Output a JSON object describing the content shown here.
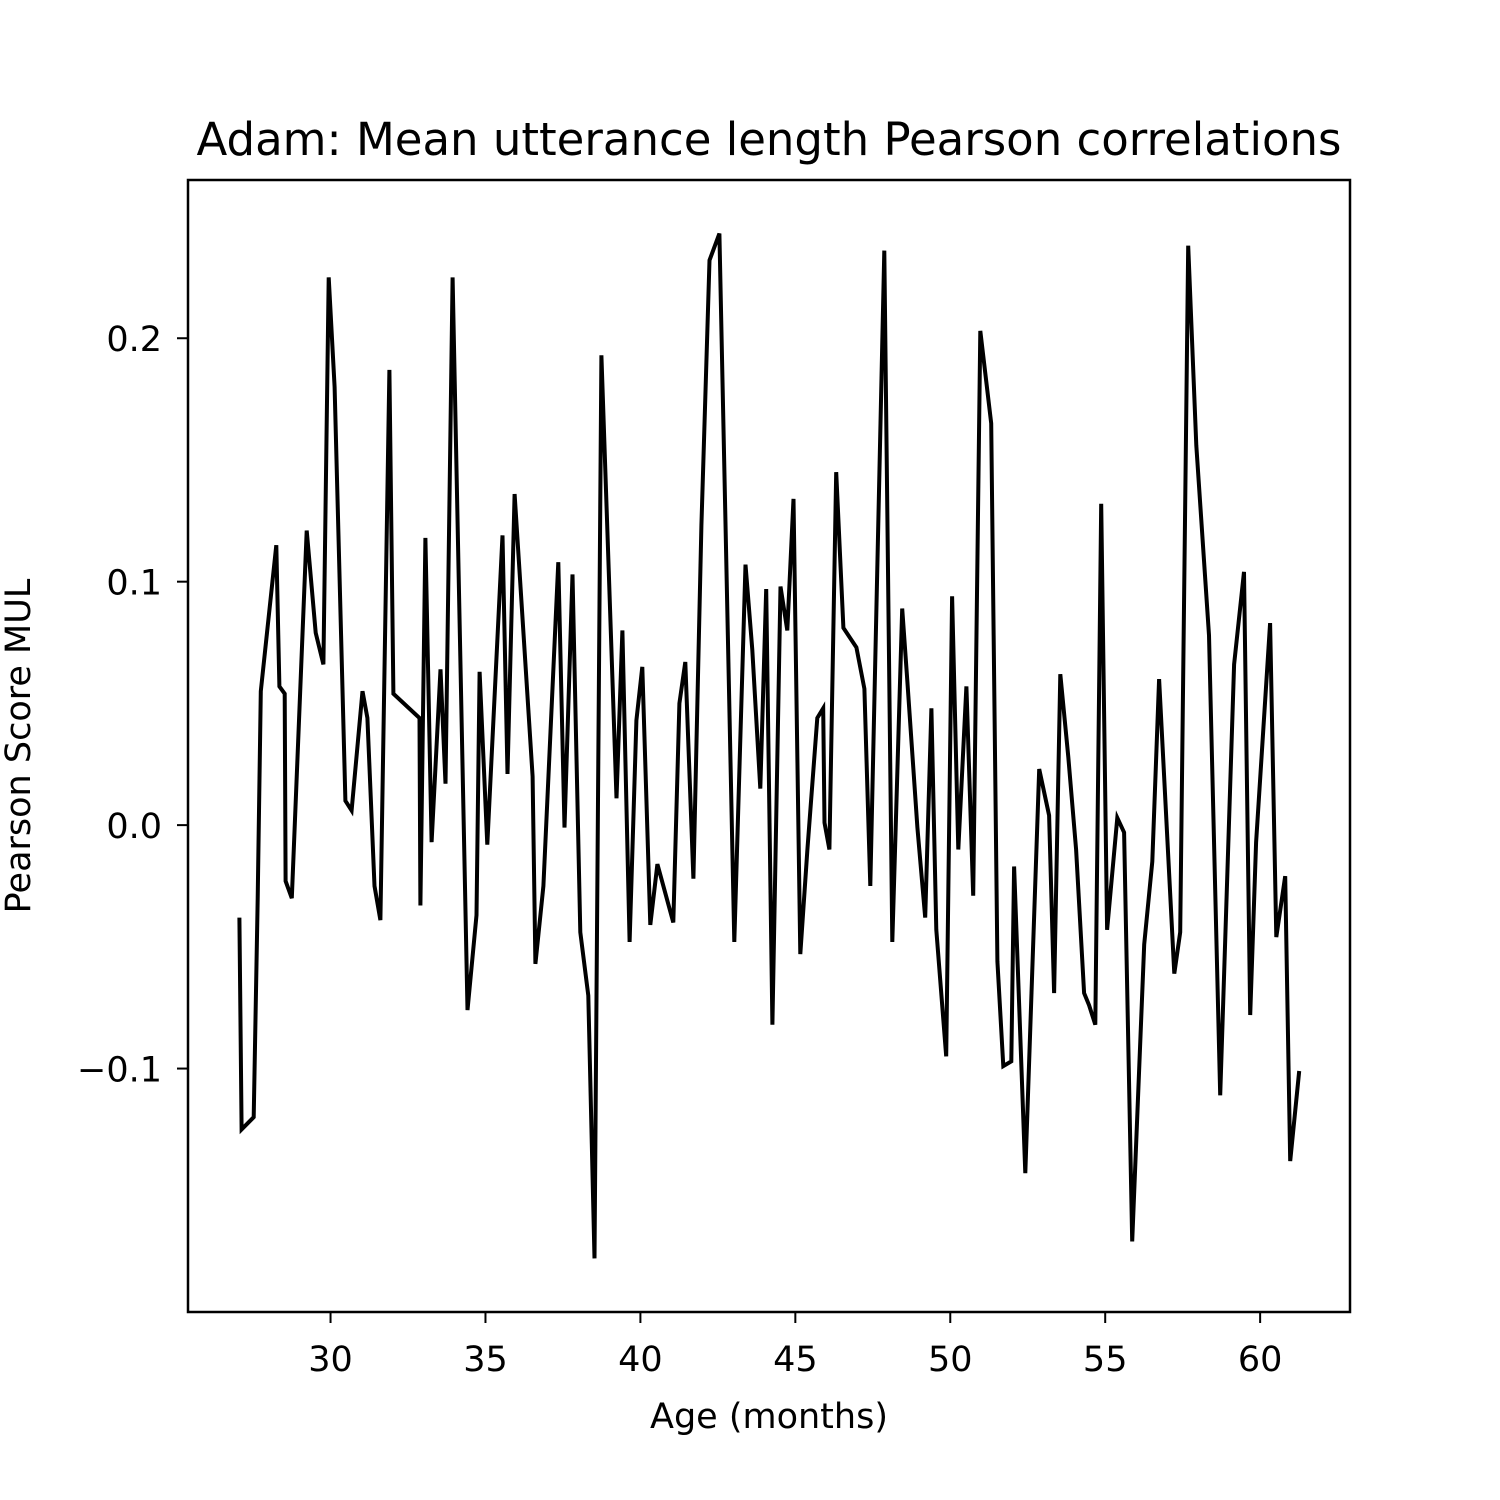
{
  "chart_data": {
    "type": "line",
    "title": "Adam: Mean utterance length Pearson correlations",
    "xlabel": "Age (months)",
    "ylabel": "Pearson Score MUL",
    "xlim": [
      25.4,
      62.9
    ],
    "ylim": [
      -0.2,
      0.265
    ],
    "xticks": [
      30,
      35,
      40,
      45,
      50,
      55,
      60
    ],
    "yticks": [
      -0.1,
      0.0,
      0.1,
      0.2
    ],
    "xtick_labels": [
      "30",
      "35",
      "40",
      "45",
      "50",
      "55",
      "60"
    ],
    "ytick_labels": [
      "−0.1",
      "0.0",
      "0.1",
      "0.2"
    ],
    "grid": false,
    "legend": "none",
    "series": [
      {
        "color": "#000000",
        "points": [
          [
            27.06,
            -0.038
          ],
          [
            27.13,
            -0.125
          ],
          [
            27.52,
            -0.12
          ],
          [
            27.65,
            -0.03
          ],
          [
            27.75,
            0.055
          ],
          [
            28.25,
            0.115
          ],
          [
            28.35,
            0.057
          ],
          [
            28.52,
            0.054
          ],
          [
            28.55,
            -0.023
          ],
          [
            28.75,
            -0.03
          ],
          [
            29.23,
            0.121
          ],
          [
            29.52,
            0.079
          ],
          [
            29.77,
            0.066
          ],
          [
            29.94,
            0.225
          ],
          [
            30.13,
            0.18
          ],
          [
            30.48,
            0.01
          ],
          [
            30.68,
            0.006
          ],
          [
            31.03,
            0.055
          ],
          [
            31.19,
            0.044
          ],
          [
            31.42,
            -0.025
          ],
          [
            31.61,
            -0.039
          ],
          [
            31.9,
            0.187
          ],
          [
            32.03,
            0.054
          ],
          [
            32.87,
            0.044
          ],
          [
            32.9,
            -0.033
          ],
          [
            33.06,
            0.118
          ],
          [
            33.26,
            -0.007
          ],
          [
            33.55,
            0.064
          ],
          [
            33.71,
            0.017
          ],
          [
            33.94,
            0.225
          ],
          [
            34.42,
            -0.076
          ],
          [
            34.71,
            -0.037
          ],
          [
            34.81,
            0.063
          ],
          [
            35.06,
            -0.008
          ],
          [
            35.55,
            0.119
          ],
          [
            35.71,
            0.021
          ],
          [
            35.94,
            0.136
          ],
          [
            36.52,
            0.02
          ],
          [
            36.61,
            -0.057
          ],
          [
            36.87,
            -0.025
          ],
          [
            37.35,
            0.108
          ],
          [
            37.55,
            -0.001
          ],
          [
            37.81,
            0.103
          ],
          [
            38.06,
            -0.044
          ],
          [
            38.32,
            -0.07
          ],
          [
            38.52,
            -0.178
          ],
          [
            38.74,
            0.193
          ],
          [
            39.23,
            0.011
          ],
          [
            39.42,
            0.08
          ],
          [
            39.65,
            -0.048
          ],
          [
            39.87,
            0.043
          ],
          [
            40.06,
            0.065
          ],
          [
            40.32,
            -0.041
          ],
          [
            40.55,
            -0.016
          ],
          [
            41.06,
            -0.04
          ],
          [
            41.26,
            0.05
          ],
          [
            41.45,
            0.067
          ],
          [
            41.71,
            -0.022
          ],
          [
            41.97,
            0.123
          ],
          [
            42.23,
            0.232
          ],
          [
            42.55,
            0.243
          ],
          [
            43.03,
            -0.048
          ],
          [
            43.39,
            0.107
          ],
          [
            43.61,
            0.072
          ],
          [
            43.87,
            0.015
          ],
          [
            44.06,
            0.097
          ],
          [
            44.26,
            -0.082
          ],
          [
            44.52,
            0.098
          ],
          [
            44.74,
            0.08
          ],
          [
            44.94,
            0.134
          ],
          [
            45.16,
            -0.053
          ],
          [
            45.39,
            -0.01
          ],
          [
            45.71,
            0.044
          ],
          [
            45.9,
            0.048
          ],
          [
            45.94,
            0.001
          ],
          [
            46.1,
            -0.01
          ],
          [
            46.32,
            0.145
          ],
          [
            46.55,
            0.081
          ],
          [
            46.97,
            0.073
          ],
          [
            47.23,
            0.056
          ],
          [
            47.42,
            -0.025
          ],
          [
            47.87,
            0.236
          ],
          [
            48.13,
            -0.048
          ],
          [
            48.45,
            0.089
          ],
          [
            48.61,
            0.06
          ],
          [
            48.94,
            -0.001
          ],
          [
            49.19,
            -0.038
          ],
          [
            49.39,
            0.048
          ],
          [
            49.55,
            -0.043
          ],
          [
            49.87,
            -0.095
          ],
          [
            50.06,
            0.094
          ],
          [
            50.26,
            -0.01
          ],
          [
            50.52,
            0.057
          ],
          [
            50.74,
            -0.029
          ],
          [
            50.97,
            0.203
          ],
          [
            51.32,
            0.165
          ],
          [
            51.52,
            -0.056
          ],
          [
            51.71,
            -0.099
          ],
          [
            51.97,
            -0.097
          ],
          [
            52.06,
            -0.017
          ],
          [
            52.42,
            -0.143
          ],
          [
            52.87,
            0.023
          ],
          [
            53.19,
            0.004
          ],
          [
            53.35,
            -0.069
          ],
          [
            53.55,
            0.062
          ],
          [
            53.81,
            0.028
          ],
          [
            54.06,
            -0.01
          ],
          [
            54.32,
            -0.069
          ],
          [
            54.48,
            -0.074
          ],
          [
            54.68,
            -0.082
          ],
          [
            54.87,
            0.132
          ],
          [
            55.06,
            -0.043
          ],
          [
            55.39,
            0.003
          ],
          [
            55.61,
            -0.003
          ],
          [
            55.87,
            -0.171
          ],
          [
            56.26,
            -0.049
          ],
          [
            56.52,
            -0.015
          ],
          [
            56.74,
            0.06
          ],
          [
            57.23,
            -0.061
          ],
          [
            57.42,
            -0.044
          ],
          [
            57.68,
            0.238
          ],
          [
            57.94,
            0.156
          ],
          [
            58.35,
            0.078
          ],
          [
            58.71,
            -0.111
          ],
          [
            59.16,
            0.066
          ],
          [
            59.48,
            0.104
          ],
          [
            59.68,
            -0.078
          ],
          [
            59.87,
            -0.007
          ],
          [
            60.32,
            0.083
          ],
          [
            60.52,
            -0.046
          ],
          [
            60.81,
            -0.021
          ],
          [
            60.97,
            -0.138
          ],
          [
            61.26,
            -0.101
          ]
        ]
      }
    ]
  }
}
